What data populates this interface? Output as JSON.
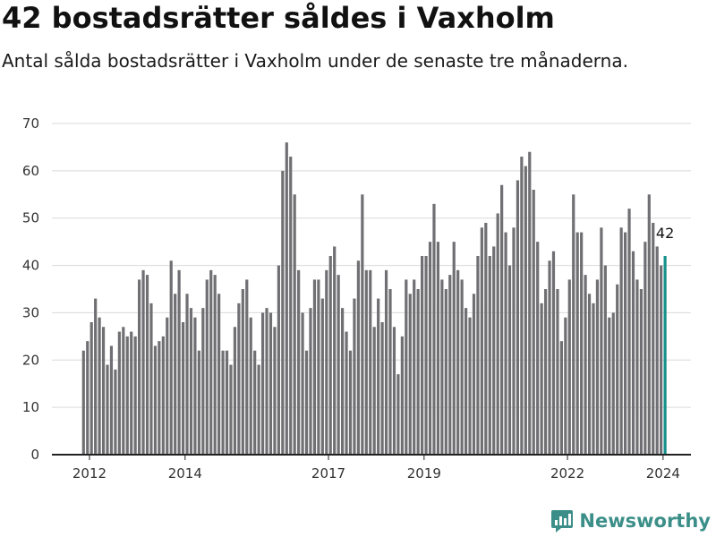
{
  "header": {
    "title": "42 bostadsrätter såldes i Vaxholm",
    "subtitle": "Antal sålda bostadsrätter i Vaxholm under de senaste tre månaderna."
  },
  "brand": {
    "name": "Newsworthy",
    "color": "#3c8f89"
  },
  "chart_data": {
    "type": "bar",
    "title": "42 bostadsrätter såldes i Vaxholm",
    "subtitle": "Antal sålda bostadsrätter i Vaxholm under de senaste tre månaderna.",
    "xlabel": "",
    "ylabel": "",
    "ylim": [
      0,
      70
    ],
    "yticks": [
      0,
      10,
      20,
      30,
      40,
      50,
      60,
      70
    ],
    "grid": true,
    "x_start": "2011-11",
    "x_end": "2024-03",
    "x_ticks": [
      {
        "label": "2012",
        "date": "2012-01"
      },
      {
        "label": "2014",
        "date": "2014-01"
      },
      {
        "label": "2017",
        "date": "2017-01"
      },
      {
        "label": "2019",
        "date": "2019-01"
      },
      {
        "label": "2022",
        "date": "2022-01"
      },
      {
        "label": "2024",
        "date": "2024-01"
      }
    ],
    "bar_color": "#707074",
    "highlight_color": "#15918c",
    "highlight_label": "42",
    "values": [
      22,
      24,
      28,
      33,
      29,
      27,
      19,
      23,
      18,
      26,
      27,
      25,
      26,
      25,
      37,
      39,
      38,
      32,
      23,
      24,
      25,
      29,
      41,
      34,
      39,
      28,
      34,
      31,
      29,
      22,
      31,
      37,
      39,
      38,
      34,
      22,
      22,
      19,
      27,
      32,
      35,
      37,
      29,
      22,
      19,
      30,
      31,
      30,
      27,
      40,
      60,
      66,
      63,
      55,
      39,
      30,
      22,
      31,
      37,
      37,
      33,
      39,
      42,
      44,
      38,
      31,
      26,
      22,
      33,
      41,
      55,
      39,
      39,
      27,
      33,
      28,
      39,
      35,
      27,
      17,
      25,
      37,
      34,
      37,
      35,
      42,
      42,
      45,
      53,
      45,
      37,
      35,
      38,
      45,
      39,
      37,
      31,
      29,
      34,
      42,
      48,
      49,
      42,
      44,
      51,
      57,
      47,
      40,
      48,
      58,
      63,
      61,
      64,
      56,
      45,
      32,
      35,
      41,
      43,
      35,
      24,
      29,
      37,
      55,
      47,
      47,
      38,
      34,
      32,
      37,
      48,
      40,
      29,
      30,
      36,
      48,
      47,
      52,
      43,
      37,
      35,
      45,
      55,
      49,
      44,
      40,
      42
    ]
  }
}
